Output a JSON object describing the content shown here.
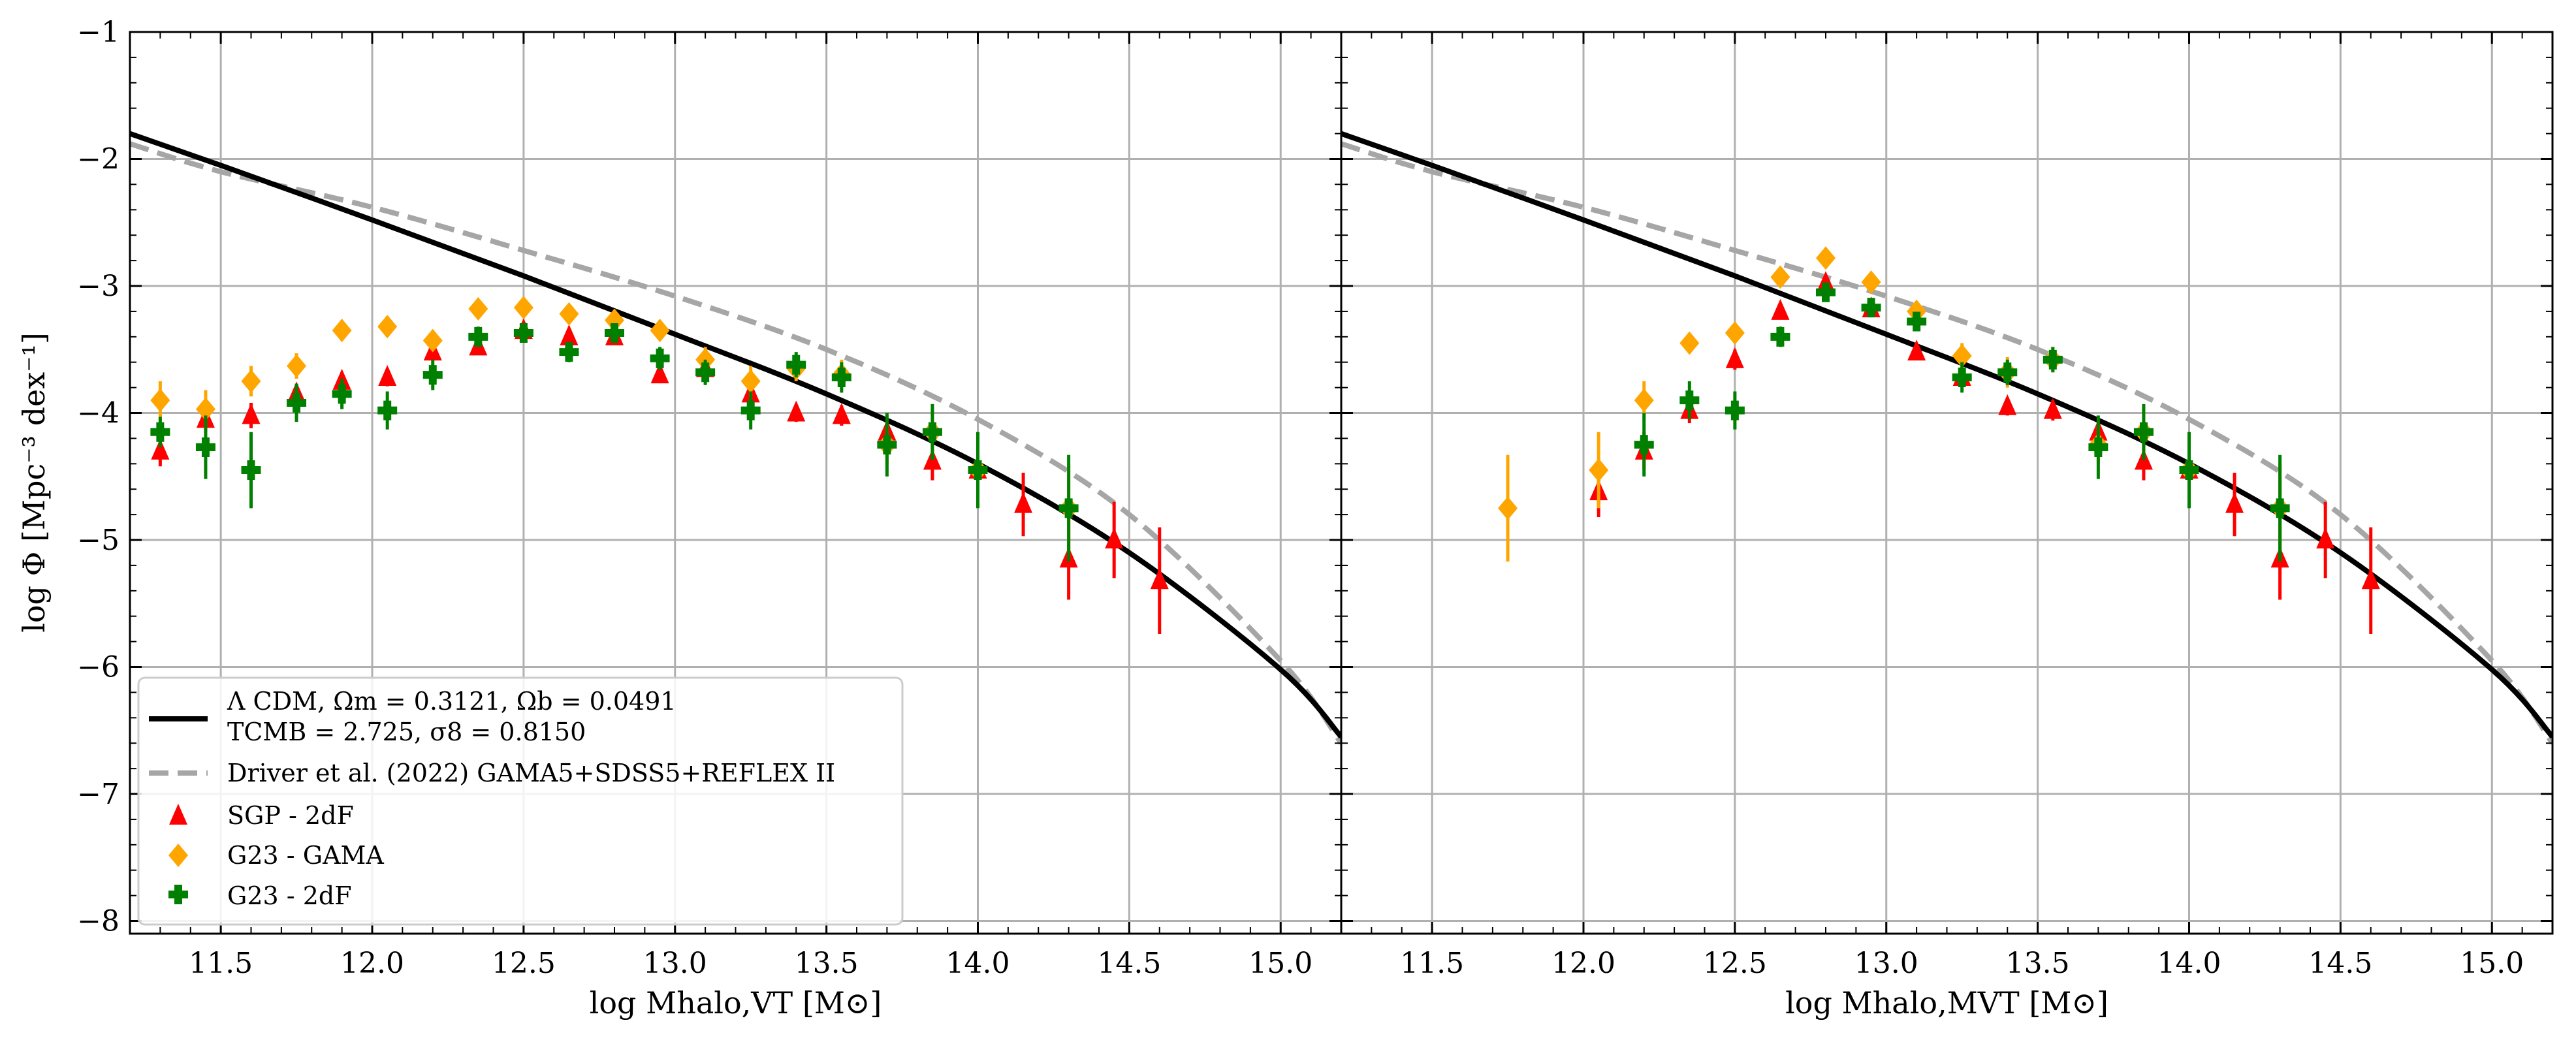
{
  "figure": {
    "ylabel": "log Φ [Mpc⁻³ dex⁻¹]",
    "legend_placement": "lower-left of left panel",
    "colors": {
      "lcdm": "#000000",
      "driver": "#a6a6a6",
      "sgp": "#ff0000",
      "g23_gama": "#ffa500",
      "g23_2df": "#008000",
      "grid": "#b0b0b0"
    }
  },
  "legend": [
    {
      "key": "lcdm",
      "line1": "Λ CDM, Ωm = 0.3121, Ωb = 0.0491",
      "line2": "TCMB = 2.725, σ8 = 0.8150"
    },
    {
      "key": "driver",
      "line1": "Driver et al. (2022) GAMA5+SDSS5+REFLEX II"
    },
    {
      "key": "sgp",
      "line1": "SGP - 2dF"
    },
    {
      "key": "g23_gama",
      "line1": "G23 - GAMA"
    },
    {
      "key": "g23_2df",
      "line1": "G23 - 2dF"
    }
  ],
  "chart_data": [
    {
      "type": "scatter",
      "panel": "left",
      "xlabel": "log Mhalo,VT [M⊙]",
      "ylabel": "log Φ [Mpc⁻³ dex⁻¹]",
      "xlim": [
        11.2,
        15.2
      ],
      "ylim": [
        -8.1,
        -1.0
      ],
      "xticks": [
        "11.5",
        "12.0",
        "12.5",
        "13.0",
        "13.5",
        "14.0",
        "14.5",
        "15.0"
      ],
      "yticks": [
        "−1",
        "−2",
        "−3",
        "−4",
        "−5",
        "−6",
        "−7",
        "−8"
      ],
      "grid": true,
      "lines": [
        {
          "name": "Λ CDM",
          "x": [
            11.2,
            11.5,
            12.0,
            12.5,
            13.0,
            13.5,
            14.0,
            14.5,
            15.0,
            15.2
          ],
          "y": [
            -1.8,
            -2.05,
            -2.48,
            -2.92,
            -3.38,
            -3.85,
            -4.4,
            -5.1,
            -6.02,
            -6.55
          ]
        },
        {
          "name": "Driver et al. (2022)",
          "x": [
            11.2,
            11.5,
            12.0,
            12.5,
            13.0,
            13.5,
            14.0,
            14.5,
            15.0,
            15.2
          ],
          "y": [
            -1.88,
            -2.1,
            -2.38,
            -2.72,
            -3.08,
            -3.5,
            -4.05,
            -4.8,
            -5.95,
            -6.6
          ]
        }
      ],
      "series": [
        {
          "name": "SGP - 2dF",
          "marker": "triangle",
          "x": [
            11.3,
            11.45,
            11.6,
            11.75,
            11.9,
            12.05,
            12.2,
            12.35,
            12.5,
            12.65,
            12.8,
            12.95,
            13.1,
            13.25,
            13.4,
            13.55,
            13.7,
            13.85,
            14.0,
            14.15,
            14.3,
            14.45,
            14.6
          ],
          "y": [
            -4.3,
            -4.05,
            -4.02,
            -3.85,
            -3.75,
            -3.72,
            -3.52,
            -3.48,
            -3.35,
            -3.4,
            -3.4,
            -3.7,
            -3.65,
            -3.85,
            -4.0,
            -4.02,
            -4.15,
            -4.38,
            -4.45,
            -4.72,
            -5.15,
            -5.0,
            -5.32
          ],
          "yerr": [
            0.12,
            0.1,
            0.1,
            0.08,
            0.07,
            0.07,
            0.06,
            0.06,
            0.05,
            0.05,
            0.05,
            0.06,
            0.06,
            0.07,
            0.07,
            0.08,
            0.1,
            0.15,
            0.2,
            0.25,
            0.32,
            0.3,
            0.42
          ]
        },
        {
          "name": "G23 - GAMA",
          "marker": "diamond",
          "x": [
            11.3,
            11.45,
            11.6,
            11.75,
            11.9,
            12.05,
            12.2,
            12.35,
            12.5,
            12.65,
            12.8,
            12.95,
            13.1,
            13.25,
            13.4,
            13.55,
            13.7,
            13.85,
            14.0,
            14.3
          ],
          "y": [
            -3.9,
            -3.97,
            -3.75,
            -3.63,
            -3.35,
            -3.32,
            -3.43,
            -3.18,
            -3.17,
            -3.22,
            -3.27,
            -3.35,
            -3.58,
            -3.75,
            -3.65,
            -3.7,
            -4.25,
            -4.15,
            -4.45,
            -4.75
          ],
          "yerr": [
            0.15,
            0.15,
            0.12,
            0.1,
            0.08,
            0.08,
            0.08,
            0.06,
            0.06,
            0.06,
            0.06,
            0.07,
            0.1,
            0.12,
            0.1,
            0.12,
            0.15,
            0.2,
            0.25,
            0.35
          ]
        },
        {
          "name": "G23 - 2dF",
          "marker": "plus",
          "x": [
            11.3,
            11.45,
            11.6,
            11.75,
            11.9,
            12.05,
            12.2,
            12.35,
            12.5,
            12.65,
            12.8,
            12.95,
            13.1,
            13.25,
            13.4,
            13.55,
            13.7,
            13.85,
            14.0,
            14.3
          ],
          "y": [
            -4.15,
            -4.27,
            -4.45,
            -3.92,
            -3.85,
            -3.98,
            -3.7,
            -3.4,
            -3.37,
            -3.52,
            -3.37,
            -3.57,
            -3.68,
            -3.98,
            -3.62,
            -3.72,
            -4.25,
            -4.15,
            -4.45,
            -4.75
          ],
          "yerr": [
            0.12,
            0.25,
            0.3,
            0.15,
            0.12,
            0.15,
            0.12,
            0.08,
            0.07,
            0.08,
            0.07,
            0.09,
            0.1,
            0.15,
            0.1,
            0.12,
            0.25,
            0.22,
            0.3,
            0.42
          ]
        }
      ]
    },
    {
      "type": "scatter",
      "panel": "right",
      "xlabel": "log Mhalo,MVT [M⊙]",
      "xlim": [
        11.2,
        15.2
      ],
      "ylim": [
        -8.1,
        -1.0
      ],
      "xticks": [
        "11.5",
        "12.0",
        "12.5",
        "13.0",
        "13.5",
        "14.0",
        "14.5",
        "15.0"
      ],
      "grid": true,
      "lines": [
        {
          "name": "Λ CDM",
          "x": [
            11.2,
            11.5,
            12.0,
            12.5,
            13.0,
            13.5,
            14.0,
            14.5,
            15.0,
            15.2
          ],
          "y": [
            -1.8,
            -2.05,
            -2.48,
            -2.92,
            -3.38,
            -3.85,
            -4.4,
            -5.1,
            -6.02,
            -6.55
          ]
        },
        {
          "name": "Driver et al. (2022)",
          "x": [
            11.2,
            11.5,
            12.0,
            12.5,
            13.0,
            13.5,
            14.0,
            14.5,
            15.0,
            15.2
          ],
          "y": [
            -1.88,
            -2.1,
            -2.38,
            -2.72,
            -3.08,
            -3.5,
            -4.05,
            -4.8,
            -5.95,
            -6.6
          ]
        }
      ],
      "series": [
        {
          "name": "SGP - 2dF",
          "marker": "triangle",
          "x": [
            12.05,
            12.2,
            12.35,
            12.5,
            12.65,
            12.8,
            12.95,
            13.1,
            13.25,
            13.4,
            13.55,
            13.7,
            13.85,
            14.0,
            14.15,
            14.3,
            14.45,
            14.6
          ],
          "y": [
            -4.62,
            -4.3,
            -3.98,
            -3.58,
            -3.2,
            -2.98,
            -3.18,
            -3.52,
            -3.72,
            -3.95,
            -3.98,
            -4.15,
            -4.38,
            -4.45,
            -4.72,
            -5.15,
            -5.0,
            -5.32
          ],
          "yerr": [
            0.2,
            0.15,
            0.1,
            0.08,
            0.06,
            0.05,
            0.05,
            0.06,
            0.07,
            0.07,
            0.08,
            0.1,
            0.15,
            0.2,
            0.25,
            0.32,
            0.3,
            0.42
          ]
        },
        {
          "name": "G23 - GAMA",
          "marker": "diamond",
          "x": [
            11.75,
            12.05,
            12.2,
            12.35,
            12.5,
            12.65,
            12.8,
            12.95,
            13.1,
            13.25,
            13.4,
            13.55,
            13.7,
            13.85,
            14.0,
            14.3
          ],
          "y": [
            -4.75,
            -4.45,
            -3.9,
            -3.45,
            -3.37,
            -2.93,
            -2.78,
            -2.97,
            -3.2,
            -3.55,
            -3.68,
            -3.58,
            -4.25,
            -4.15,
            -4.45,
            -4.75
          ],
          "yerr": [
            0.42,
            0.3,
            0.15,
            0.08,
            0.08,
            0.06,
            0.05,
            0.06,
            0.07,
            0.1,
            0.12,
            0.1,
            0.15,
            0.2,
            0.25,
            0.35
          ]
        },
        {
          "name": "G23 - 2dF",
          "marker": "plus",
          "x": [
            12.2,
            12.35,
            12.5,
            12.65,
            12.8,
            12.95,
            13.1,
            13.25,
            13.4,
            13.55,
            13.7,
            13.85,
            14.0,
            14.3
          ],
          "y": [
            -4.25,
            -3.9,
            -3.98,
            -3.4,
            -3.05,
            -3.17,
            -3.28,
            -3.72,
            -3.68,
            -3.58,
            -4.27,
            -4.15,
            -4.45,
            -4.75
          ],
          "yerr": [
            0.25,
            0.15,
            0.15,
            0.08,
            0.06,
            0.06,
            0.07,
            0.12,
            0.1,
            0.1,
            0.25,
            0.22,
            0.3,
            0.42
          ]
        }
      ]
    }
  ]
}
